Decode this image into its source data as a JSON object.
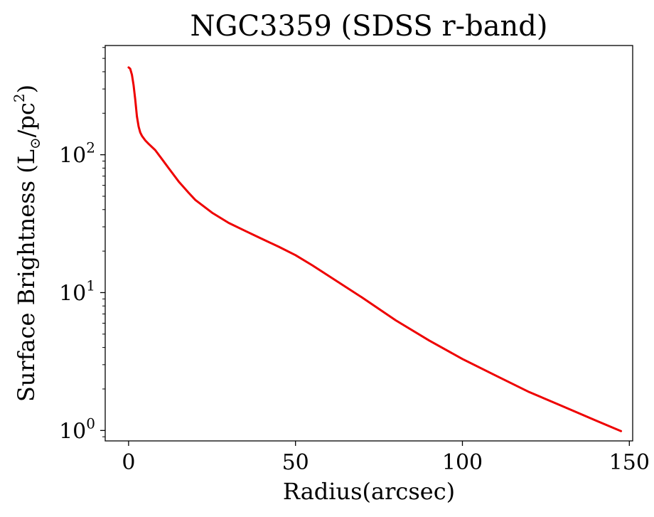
{
  "chart_data": {
    "type": "line",
    "title": "NGC3359 (SDSS r-band)",
    "xlabel": "Radius(arcsec)",
    "ylabel": {
      "prefix": "Surface Brightness (L",
      "subscript": "⊙",
      "middle": "/pc",
      "superscript": "2",
      "suffix": ")"
    },
    "xlim": [
      -7,
      151
    ],
    "ylim": [
      0.84,
      620
    ],
    "yscale": "log",
    "grid": false,
    "x_ticks": [
      {
        "value": 0,
        "label": "0"
      },
      {
        "value": 50,
        "label": "50"
      },
      {
        "value": 100,
        "label": "100"
      },
      {
        "value": 150,
        "label": "150"
      }
    ],
    "y_ticks": [
      {
        "value": 1,
        "base": "10",
        "exp": "0"
      },
      {
        "value": 10,
        "base": "10",
        "exp": "1"
      },
      {
        "value": 100,
        "base": "10",
        "exp": "2"
      }
    ],
    "series": [
      {
        "color": "#ee0000",
        "x": [
          0,
          0.5,
          1,
          1.5,
          2,
          2.5,
          3,
          3.5,
          4,
          5,
          6,
          8,
          10,
          12,
          15,
          18,
          20,
          25,
          30,
          35,
          40,
          45,
          50,
          55,
          60,
          70,
          80,
          90,
          100,
          110,
          120,
          130,
          140,
          147.5
        ],
        "y": [
          430,
          420,
          380,
          320,
          250,
          190,
          160,
          145,
          137,
          127,
          120,
          108,
          93,
          80,
          64,
          53,
          47,
          38,
          32,
          28,
          24.5,
          21.5,
          18.7,
          15.8,
          13.2,
          9.2,
          6.3,
          4.5,
          3.3,
          2.5,
          1.9,
          1.5,
          1.18,
          0.99
        ]
      }
    ]
  }
}
